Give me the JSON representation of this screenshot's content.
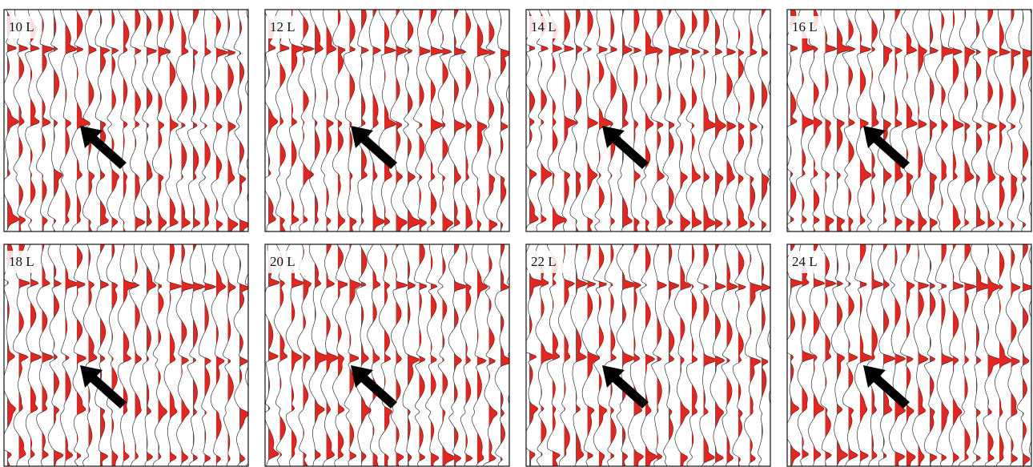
{
  "panels": [
    {
      "label": "10 L"
    },
    {
      "label": "12 L"
    },
    {
      "label": "14 L"
    },
    {
      "label": "16 L"
    },
    {
      "label": "18 L"
    },
    {
      "label": "20 L"
    },
    {
      "label": "22 L"
    },
    {
      "label": "24 L"
    }
  ]
}
